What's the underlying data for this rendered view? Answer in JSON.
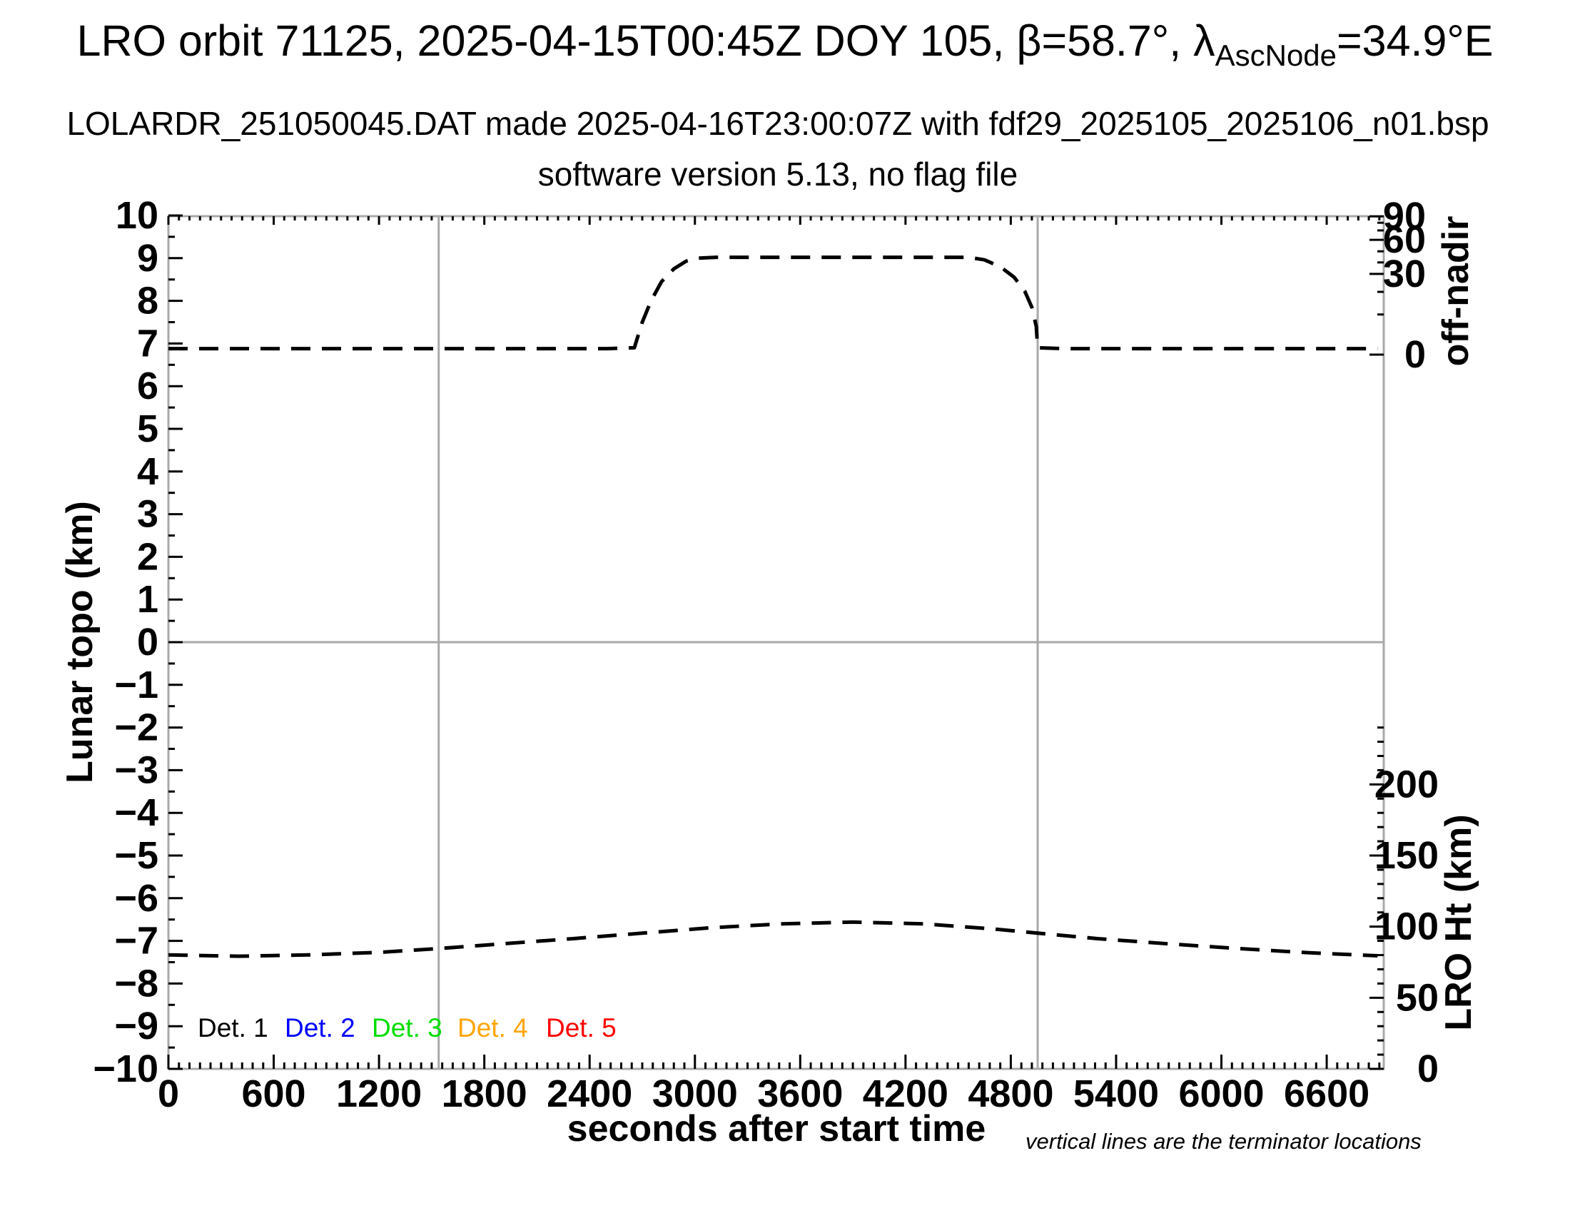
{
  "header": {
    "title_prefix": "LRO orbit 71125, 2025-04-15T00:45Z DOY 105, β=58.7°, λ",
    "title_sub": "AscNode",
    "title_suffix": "=34.9°E",
    "subtitle": "LOLARDR_251050045.DAT made 2025-04-16T23:00:07Z with fdf29_2025105_2025106_n01.bsp",
    "subtitle2": "software version 5.13, no flag file"
  },
  "footnote": "vertical lines are the terminator locations",
  "legend": [
    {
      "label": "Det. 1",
      "color": "#000000",
      "x": 277
    },
    {
      "label": "Det. 2",
      "color": "#0000ff",
      "x": 399
    },
    {
      "label": "Det. 3",
      "color": "#00dd00",
      "x": 521
    },
    {
      "label": "Det. 4",
      "color": "#ffa500",
      "x": 641
    },
    {
      "label": "Det. 5",
      "color": "#ff0000",
      "x": 765
    }
  ],
  "colors": {
    "frame_and_grid": "#a9a9a9",
    "ticks_and_text": "#000000",
    "curves": "#000000",
    "background": "#ffffff"
  },
  "chart_data": {
    "type": "line",
    "title": "LRO orbit 71125, 2025-04-15T00:45Z DOY 105, beta=58.7deg, lambda_AscNode=34.9degE",
    "xlabel": "seconds after start time",
    "ylabel_left": "Lunar topo (km)",
    "ylabel_right_top": "off-nadir",
    "ylabel_right_bottom": "LRO Ht (km)",
    "x_range": [
      0,
      6925
    ],
    "y_range_left": [
      -10,
      10
    ],
    "x_major_tick_step": 600,
    "x_major_tick_labels": [
      "0",
      "600",
      "1200",
      "1800",
      "2400",
      "3000",
      "3600",
      "4200",
      "4800",
      "5400",
      "6000",
      "6600"
    ],
    "x_minor_tick_step": 60,
    "left_major_tick_step": 1,
    "left_minor_tick_step": 0.5,
    "off_nadir_ticks": [
      {
        "label": "90",
        "y_topo": 9.98
      },
      {
        "label": "",
        "y_topo": 9.83
      },
      {
        "label": "",
        "y_topo": 9.65
      },
      {
        "label": "60",
        "y_topo": 9.43
      },
      {
        "label": "",
        "y_topo": 9.16
      },
      {
        "label": "",
        "y_topo": 8.9
      },
      {
        "label": "30",
        "y_topo": 8.63
      },
      {
        "label": "",
        "y_topo": 8.21
      },
      {
        "label": "",
        "y_topo": 7.68
      },
      {
        "label": "0",
        "y_topo": 6.74
      }
    ],
    "lro_ht_axis": {
      "km_min": 0,
      "km_max": 240,
      "km_minor_step": 10,
      "km_labeled_step": 50,
      "km_label_max": 200,
      "topo_per_km": 0.033333,
      "topo_at_zero_km": -10
    },
    "terminator_lines_t": [
      1540,
      4953
    ],
    "zero_line_y": 0,
    "grid": false,
    "legend_position": "bottom-left-inside",
    "series": [
      {
        "name": "spacecraft off-nadir angle (dashed, vs right top axis)",
        "style": "dashed",
        "color": "#000000",
        "points": [
          [
            0,
            6.88
          ],
          [
            400,
            6.88
          ],
          [
            800,
            6.88
          ],
          [
            1200,
            6.88
          ],
          [
            1600,
            6.88
          ],
          [
            2000,
            6.88
          ],
          [
            2300,
            6.88
          ],
          [
            2500,
            6.88
          ],
          [
            2655,
            6.9
          ],
          [
            2700,
            7.5
          ],
          [
            2750,
            8.0
          ],
          [
            2810,
            8.45
          ],
          [
            2880,
            8.75
          ],
          [
            2950,
            8.93
          ],
          [
            3020,
            9.0
          ],
          [
            3120,
            9.02
          ],
          [
            3400,
            9.02
          ],
          [
            3700,
            9.02
          ],
          [
            4000,
            9.02
          ],
          [
            4300,
            9.02
          ],
          [
            4560,
            9.02
          ],
          [
            4650,
            8.96
          ],
          [
            4740,
            8.8
          ],
          [
            4820,
            8.55
          ],
          [
            4880,
            8.22
          ],
          [
            4920,
            7.85
          ],
          [
            4945,
            7.4
          ],
          [
            4953,
            6.9
          ],
          [
            5100,
            6.88
          ],
          [
            5400,
            6.88
          ],
          [
            5800,
            6.88
          ],
          [
            6200,
            6.88
          ],
          [
            6600,
            6.88
          ],
          [
            6890,
            6.88
          ]
        ]
      },
      {
        "name": "LRO height (dashed, vs right bottom axis)",
        "style": "dashed",
        "color": "#000000",
        "points": [
          [
            0,
            -7.33
          ],
          [
            400,
            -7.36
          ],
          [
            800,
            -7.33
          ],
          [
            1200,
            -7.27
          ],
          [
            1540,
            -7.18
          ],
          [
            1900,
            -7.07
          ],
          [
            2300,
            -6.95
          ],
          [
            2700,
            -6.82
          ],
          [
            3100,
            -6.69
          ],
          [
            3500,
            -6.6
          ],
          [
            3900,
            -6.56
          ],
          [
            4300,
            -6.6
          ],
          [
            4700,
            -6.72
          ],
          [
            4953,
            -6.82
          ],
          [
            5300,
            -6.95
          ],
          [
            5700,
            -7.07
          ],
          [
            6100,
            -7.18
          ],
          [
            6500,
            -7.28
          ],
          [
            6890,
            -7.35
          ]
        ]
      }
    ]
  }
}
